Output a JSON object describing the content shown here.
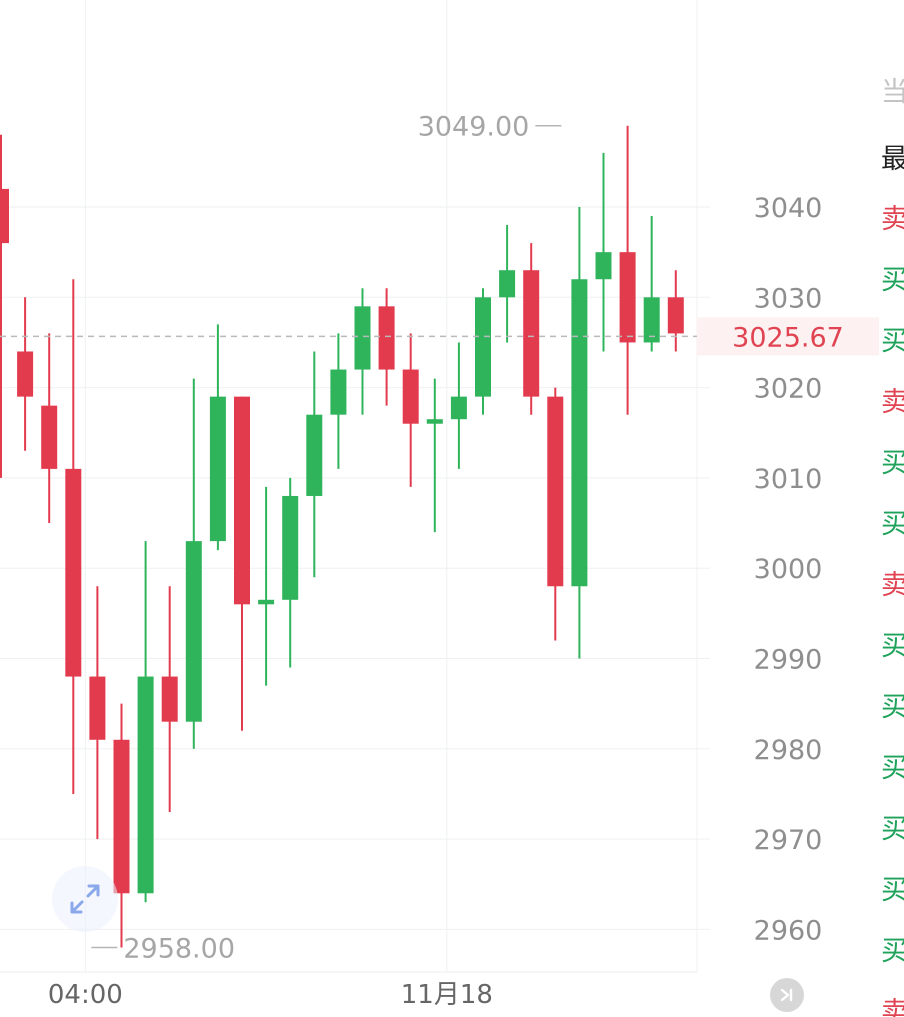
{
  "chart_data": {
    "type": "candlestick",
    "y_axis": {
      "ticks": [
        "3040",
        "3030",
        "3020",
        "3010",
        "3000",
        "2990",
        "2980",
        "2970",
        "2960"
      ],
      "range": [
        2954,
        3060
      ],
      "position": "right"
    },
    "x_axis": {
      "tick_labels": [
        {
          "label": "04:00",
          "index": 3.5
        },
        {
          "label": "11月18",
          "index": 18.5
        }
      ]
    },
    "current_price": {
      "value": 3025.67,
      "label": "3025.67"
    },
    "max_marker": {
      "value": 3049.0,
      "label": "3049.00",
      "index": 23.5
    },
    "min_marker": {
      "value": 2958.0,
      "label": "2958.00",
      "index": 3.5
    },
    "candles": [
      {
        "open": 3042,
        "high": 3048,
        "low": 3010,
        "close": 3036
      },
      {
        "open": 3024,
        "high": 3030,
        "low": 3013,
        "close": 3019
      },
      {
        "open": 3018,
        "high": 3026,
        "low": 3005,
        "close": 3011
      },
      {
        "open": 3011,
        "high": 3032,
        "low": 2975,
        "close": 2988
      },
      {
        "open": 2988,
        "high": 2998,
        "low": 2970,
        "close": 2981
      },
      {
        "open": 2981,
        "high": 2985,
        "low": 2958,
        "close": 2964
      },
      {
        "open": 2964,
        "high": 3003,
        "low": 2963,
        "close": 2988
      },
      {
        "open": 2988,
        "high": 2998,
        "low": 2973,
        "close": 2983
      },
      {
        "open": 2983,
        "high": 3021,
        "low": 2980,
        "close": 3003
      },
      {
        "open": 3003,
        "high": 3027,
        "low": 3002,
        "close": 3019
      },
      {
        "open": 3019,
        "high": 3019,
        "low": 2982,
        "close": 2996
      },
      {
        "open": 2996,
        "high": 3009,
        "low": 2987,
        "close": 2996.5
      },
      {
        "open": 2996.5,
        "high": 3010,
        "low": 2989,
        "close": 3008
      },
      {
        "open": 3008,
        "high": 3024,
        "low": 2999,
        "close": 3017
      },
      {
        "open": 3017,
        "high": 3026,
        "low": 3011,
        "close": 3022
      },
      {
        "open": 3022,
        "high": 3031,
        "low": 3017,
        "close": 3029
      },
      {
        "open": 3029,
        "high": 3031,
        "low": 3018,
        "close": 3022
      },
      {
        "open": 3022,
        "high": 3026,
        "low": 3009,
        "close": 3016
      },
      {
        "open": 3016,
        "high": 3021,
        "low": 3004,
        "close": 3016.5
      },
      {
        "open": 3016.5,
        "high": 3025,
        "low": 3011,
        "close": 3019
      },
      {
        "open": 3019,
        "high": 3031,
        "low": 3017,
        "close": 3030
      },
      {
        "open": 3030,
        "high": 3038,
        "low": 3025,
        "close": 3033
      },
      {
        "open": 3033,
        "high": 3036,
        "low": 3017,
        "close": 3019
      },
      {
        "open": 3019,
        "high": 3020,
        "low": 2992,
        "close": 2998
      },
      {
        "open": 2998,
        "high": 3040,
        "low": 2990,
        "close": 3032
      },
      {
        "open": 3032,
        "high": 3046,
        "low": 3024,
        "close": 3035
      },
      {
        "open": 3035,
        "high": 3049,
        "low": 3017,
        "close": 3025
      },
      {
        "open": 3025,
        "high": 3039,
        "low": 3024,
        "close": 3030
      },
      {
        "open": 3030,
        "high": 3033,
        "low": 3024,
        "close": 3026
      }
    ],
    "colors": {
      "up": "#2fb45c",
      "down": "#e33b4e",
      "grid": "#eef0f2",
      "axis_text": "#8e8e8e",
      "current_price": "#e04452",
      "current_price_bg": "#fdf1f1",
      "marker_text": "#a6a6a6"
    }
  },
  "side_panel": {
    "header": "当",
    "title": "最",
    "rows": [
      {
        "side": "sell",
        "text": "卖"
      },
      {
        "side": "buy",
        "text": "买"
      },
      {
        "side": "buy",
        "text": "买"
      },
      {
        "side": "sell",
        "text": "卖"
      },
      {
        "side": "buy",
        "text": "买"
      },
      {
        "side": "buy",
        "text": "买"
      },
      {
        "side": "sell",
        "text": "卖"
      },
      {
        "side": "buy",
        "text": "买"
      },
      {
        "side": "buy",
        "text": "买"
      },
      {
        "side": "buy",
        "text": "买"
      },
      {
        "side": "buy",
        "text": "买"
      },
      {
        "side": "buy",
        "text": "买"
      },
      {
        "side": "buy",
        "text": "买"
      },
      {
        "side": "sell",
        "text": "卖"
      }
    ]
  },
  "icons": {
    "zoom": "expand-diagonal-icon",
    "skip": "skip-to-latest-icon"
  }
}
